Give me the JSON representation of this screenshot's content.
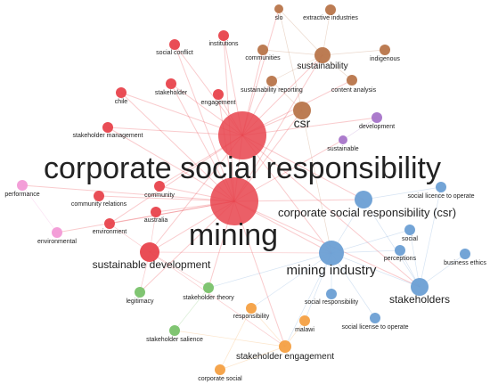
{
  "nodes": [
    {
      "id": "corporate-social-responsibility",
      "label": "corporate social responsibility",
      "cluster": "red",
      "weight": 5
    },
    {
      "id": "mining",
      "label": "mining",
      "cluster": "red",
      "weight": 5
    },
    {
      "id": "sustainable-development",
      "label": "sustainable development",
      "cluster": "red",
      "weight": 3
    },
    {
      "id": "social-conflict",
      "label": "social conflict",
      "cluster": "red",
      "weight": 1
    },
    {
      "id": "institutions",
      "label": "institutions",
      "cluster": "red",
      "weight": 1
    },
    {
      "id": "stakeholder",
      "label": "stakeholder",
      "cluster": "red",
      "weight": 1
    },
    {
      "id": "chile",
      "label": "chile",
      "cluster": "red",
      "weight": 1
    },
    {
      "id": "engagement",
      "label": "engagement",
      "cluster": "red",
      "weight": 1
    },
    {
      "id": "stakeholder-management",
      "label": "stakeholder management",
      "cluster": "red",
      "weight": 1
    },
    {
      "id": "community",
      "label": "community",
      "cluster": "red",
      "weight": 1
    },
    {
      "id": "community-relations",
      "label": "community relations",
      "cluster": "red",
      "weight": 1
    },
    {
      "id": "australia",
      "label": "australia",
      "cluster": "red",
      "weight": 1
    },
    {
      "id": "environment",
      "label": "environment",
      "cluster": "red",
      "weight": 1
    },
    {
      "id": "slo",
      "label": "slo",
      "cluster": "brown",
      "weight": 1
    },
    {
      "id": "extractive-industries",
      "label": "extractive industries",
      "cluster": "brown",
      "weight": 1
    },
    {
      "id": "communities",
      "label": "communities",
      "cluster": "brown",
      "weight": 1
    },
    {
      "id": "sustainability",
      "label": "sustainability",
      "cluster": "brown",
      "weight": 2
    },
    {
      "id": "indigenous",
      "label": "indigenous",
      "cluster": "brown",
      "weight": 1
    },
    {
      "id": "sustainability-reporting",
      "label": "sustainability reporting",
      "cluster": "brown",
      "weight": 1
    },
    {
      "id": "content-analysis",
      "label": "content analysis",
      "cluster": "brown",
      "weight": 1
    },
    {
      "id": "csr",
      "label": "csr",
      "cluster": "brown",
      "weight": 2
    },
    {
      "id": "development",
      "label": "development",
      "cluster": "purple",
      "weight": 1
    },
    {
      "id": "sustainable",
      "label": "sustainable",
      "cluster": "purple",
      "weight": 1
    },
    {
      "id": "corporate-social-responsibility-csr",
      "label": "corporate social responsibility (csr)",
      "cluster": "blue",
      "weight": 2
    },
    {
      "id": "mining-industry",
      "label": "mining industry",
      "cluster": "blue",
      "weight": 3
    },
    {
      "id": "stakeholders",
      "label": "stakeholders",
      "cluster": "blue",
      "weight": 2
    },
    {
      "id": "social-licence-to-operate",
      "label": "social licence to operate",
      "cluster": "blue",
      "weight": 1
    },
    {
      "id": "social",
      "label": "social",
      "cluster": "blue",
      "weight": 1
    },
    {
      "id": "perceptions",
      "label": "perceptions",
      "cluster": "blue",
      "weight": 1
    },
    {
      "id": "business-ethics",
      "label": "business ethics",
      "cluster": "blue",
      "weight": 1
    },
    {
      "id": "social-responsibility",
      "label": "social responsibility",
      "cluster": "blue",
      "weight": 1
    },
    {
      "id": "social-license-to-operate",
      "label": "social license to operate",
      "cluster": "blue",
      "weight": 1
    },
    {
      "id": "performance",
      "label": "performance",
      "cluster": "pink",
      "weight": 1
    },
    {
      "id": "environmental",
      "label": "environmental",
      "cluster": "pink",
      "weight": 1
    },
    {
      "id": "legitimacy",
      "label": "legitimacy",
      "cluster": "green",
      "weight": 1
    },
    {
      "id": "stakeholder-theory",
      "label": "stakeholder theory",
      "cluster": "green",
      "weight": 1
    },
    {
      "id": "stakeholder-salience",
      "label": "stakeholder salience",
      "cluster": "green",
      "weight": 1
    },
    {
      "id": "responsibility",
      "label": "responsibility",
      "cluster": "orange",
      "weight": 1
    },
    {
      "id": "malawi",
      "label": "malawi",
      "cluster": "orange",
      "weight": 1
    },
    {
      "id": "stakeholder-engagement",
      "label": "stakeholder engagement",
      "cluster": "orange",
      "weight": 2
    },
    {
      "id": "corporate-social",
      "label": "corporate social",
      "cluster": "orange",
      "weight": 1
    }
  ],
  "edges": [
    [
      "corporate-social-responsibility",
      "mining"
    ],
    [
      "corporate-social-responsibility",
      "sustainable-development"
    ],
    [
      "corporate-social-responsibility",
      "social-conflict"
    ],
    [
      "corporate-social-responsibility",
      "institutions"
    ],
    [
      "corporate-social-responsibility",
      "stakeholder"
    ],
    [
      "corporate-social-responsibility",
      "chile"
    ],
    [
      "corporate-social-responsibility",
      "engagement"
    ],
    [
      "corporate-social-responsibility",
      "stakeholder-management"
    ],
    [
      "corporate-social-responsibility",
      "sustainability"
    ],
    [
      "corporate-social-responsibility",
      "csr"
    ],
    [
      "corporate-social-responsibility",
      "communities"
    ],
    [
      "corporate-social-responsibility",
      "slo"
    ],
    [
      "corporate-social-responsibility",
      "sustainability-reporting"
    ],
    [
      "corporate-social-responsibility",
      "content-analysis"
    ],
    [
      "corporate-social-responsibility",
      "mining-industry"
    ],
    [
      "corporate-social-responsibility",
      "corporate-social-responsibility-csr"
    ],
    [
      "corporate-social-responsibility",
      "community"
    ],
    [
      "corporate-social-responsibility",
      "environment"
    ],
    [
      "corporate-social-responsibility",
      "stakeholders"
    ],
    [
      "corporate-social-responsibility",
      "development"
    ],
    [
      "mining",
      "sustainable-development"
    ],
    [
      "mining",
      "social-conflict"
    ],
    [
      "mining",
      "institutions"
    ],
    [
      "mining",
      "chile"
    ],
    [
      "mining",
      "stakeholder"
    ],
    [
      "mining",
      "engagement"
    ],
    [
      "mining",
      "community"
    ],
    [
      "mining",
      "community-relations"
    ],
    [
      "mining",
      "australia"
    ],
    [
      "mining",
      "environment"
    ],
    [
      "mining",
      "mining-industry"
    ],
    [
      "mining",
      "csr"
    ],
    [
      "mining",
      "sustainability"
    ],
    [
      "mining",
      "stakeholders"
    ],
    [
      "mining",
      "legitimacy"
    ],
    [
      "mining",
      "stakeholder-theory"
    ],
    [
      "mining",
      "stakeholder-engagement"
    ],
    [
      "mining",
      "corporate-social-responsibility-csr"
    ],
    [
      "mining",
      "environmental"
    ],
    [
      "mining",
      "performance"
    ],
    [
      "mining",
      "sustainable"
    ],
    [
      "mining",
      "stakeholder-management"
    ],
    [
      "sustainable-development",
      "legitimacy"
    ],
    [
      "sustainable-development",
      "stakeholder-theory"
    ],
    [
      "sustainable-development",
      "environment"
    ],
    [
      "sustainable-development",
      "australia"
    ],
    [
      "sustainable-development",
      "mining-industry"
    ],
    [
      "sustainable-development",
      "stakeholder-engagement"
    ],
    [
      "sustainability",
      "slo"
    ],
    [
      "sustainability",
      "extractive-industries"
    ],
    [
      "sustainability",
      "indigenous"
    ],
    [
      "sustainability",
      "communities"
    ],
    [
      "sustainability",
      "content-analysis"
    ],
    [
      "sustainability",
      "sustainability-reporting"
    ],
    [
      "csr",
      "sustainability-reporting"
    ],
    [
      "csr",
      "slo"
    ],
    [
      "csr",
      "mining-industry"
    ],
    [
      "corporate-social-responsibility-csr",
      "mining-industry"
    ],
    [
      "corporate-social-responsibility-csr",
      "social-licence-to-operate"
    ],
    [
      "corporate-social-responsibility-csr",
      "stakeholders"
    ],
    [
      "mining-industry",
      "stakeholders"
    ],
    [
      "mining-industry",
      "social"
    ],
    [
      "mining-industry",
      "perceptions"
    ],
    [
      "mining-industry",
      "social-responsibility"
    ],
    [
      "mining-industry",
      "social-license-to-operate"
    ],
    [
      "mining-industry",
      "stakeholder-engagement"
    ],
    [
      "mining-industry",
      "malawi"
    ],
    [
      "mining-industry",
      "responsibility"
    ],
    [
      "mining-industry",
      "stakeholder-theory"
    ],
    [
      "stakeholders",
      "business-ethics"
    ],
    [
      "stakeholders",
      "perceptions"
    ],
    [
      "stakeholders",
      "social-licence-to-operate"
    ],
    [
      "stakeholders",
      "social"
    ],
    [
      "stakeholder-engagement",
      "responsibility"
    ],
    [
      "stakeholder-engagement",
      "malawi"
    ],
    [
      "stakeholder-engagement",
      "corporate-social"
    ],
    [
      "stakeholder-engagement",
      "stakeholder-salience"
    ],
    [
      "responsibility",
      "corporate-social"
    ],
    [
      "performance",
      "environmental"
    ],
    [
      "stakeholder-theory",
      "stakeholder-salience"
    ],
    [
      "development",
      "sustainable"
    ]
  ],
  "colors": {
    "red": "#e8434c",
    "brown": "#b8754a",
    "purple": "#a774c9",
    "blue": "#6b9fd4",
    "pink": "#f29ad6",
    "green": "#79c26a",
    "orange": "#f4a043"
  }
}
